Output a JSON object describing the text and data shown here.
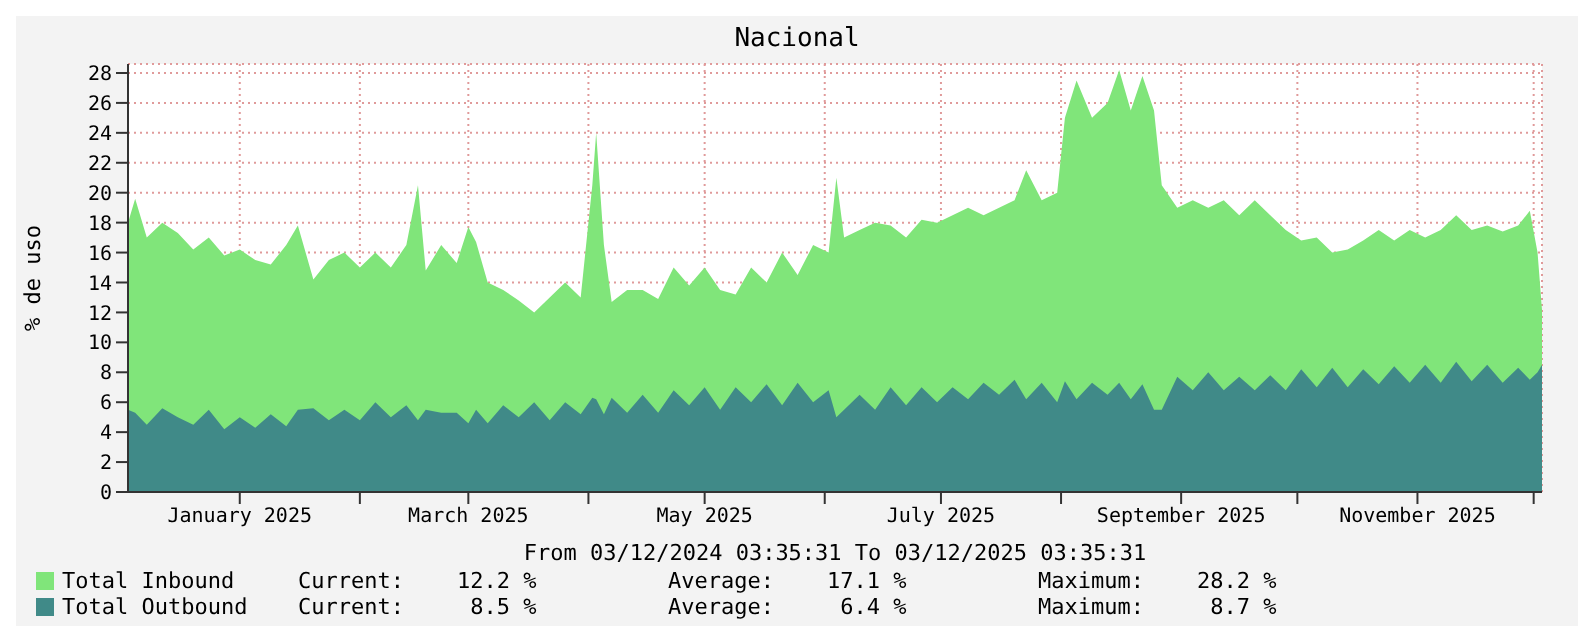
{
  "chart_data": {
    "type": "area",
    "title": "Nacional",
    "xlabel": "From 03/12/2024 03:35:31 To 03/12/2025 03:35:31",
    "ylabel": "% de uso",
    "x": [
      "2024-12-03T03:35",
      "2024-12-05",
      "2024-12-08",
      "2024-12-12",
      "2024-12-16",
      "2024-12-20",
      "2024-12-24",
      "2024-12-28",
      "2025-01-01",
      "2025-01-05",
      "2025-01-09",
      "2025-01-13",
      "2025-01-16",
      "2025-01-20",
      "2025-01-24",
      "2025-01-28",
      "2025-02-01",
      "2025-02-05",
      "2025-02-09",
      "2025-02-13",
      "2025-02-16",
      "2025-02-18",
      "2025-02-22",
      "2025-02-26",
      "2025-03-01",
      "2025-03-03",
      "2025-03-06",
      "2025-03-10",
      "2025-03-14",
      "2025-03-18",
      "2025-03-22",
      "2025-03-26",
      "2025-03-30",
      "2025-04-02",
      "2025-04-03",
      "2025-04-05",
      "2025-04-07",
      "2025-04-11",
      "2025-04-15",
      "2025-04-19",
      "2025-04-23",
      "2025-04-27",
      "2025-05-01",
      "2025-05-05",
      "2025-05-09",
      "2025-05-13",
      "2025-05-17",
      "2025-05-21",
      "2025-05-25",
      "2025-05-29",
      "2025-06-02",
      "2025-06-04",
      "2025-06-06",
      "2025-06-10",
      "2025-06-14",
      "2025-06-18",
      "2025-06-22",
      "2025-06-26",
      "2025-06-30",
      "2025-07-04",
      "2025-07-08",
      "2025-07-12",
      "2025-07-16",
      "2025-07-20",
      "2025-07-23",
      "2025-07-27",
      "2025-07-31",
      "2025-08-02",
      "2025-08-05",
      "2025-08-09",
      "2025-08-13",
      "2025-08-16",
      "2025-08-19",
      "2025-08-22",
      "2025-08-25",
      "2025-08-27",
      "2025-08-31",
      "2025-09-04",
      "2025-09-08",
      "2025-09-12",
      "2025-09-16",
      "2025-09-20",
      "2025-09-24",
      "2025-09-28",
      "2025-10-02",
      "2025-10-06",
      "2025-10-10",
      "2025-10-14",
      "2025-10-18",
      "2025-10-22",
      "2025-10-26",
      "2025-10-30",
      "2025-11-03",
      "2025-11-07",
      "2025-11-11",
      "2025-11-15",
      "2025-11-19",
      "2025-11-23",
      "2025-11-27",
      "2025-11-30",
      "2025-12-02",
      "2025-12-03T03:35"
    ],
    "series": [
      {
        "name": "Total Inbound",
        "color": "#80e57a",
        "values": [
          18,
          19.6,
          17,
          18,
          17.3,
          16.2,
          17,
          15.8,
          16.2,
          15.5,
          15.2,
          16.5,
          17.8,
          14.2,
          15.5,
          16,
          15,
          16,
          15,
          16.5,
          20.5,
          14.8,
          16.5,
          15.3,
          17.7,
          16.7,
          14,
          13.5,
          12.8,
          12,
          13,
          14,
          13,
          20.5,
          24,
          16.5,
          12.7,
          13.5,
          13.5,
          12.9,
          15,
          13.8,
          15,
          13.5,
          13.2,
          15,
          14,
          16,
          14.5,
          16.5,
          16,
          21,
          17,
          17.5,
          18,
          17.8,
          17,
          18.2,
          18,
          18.5,
          19,
          18.5,
          19,
          19.5,
          21.5,
          19.5,
          20,
          25,
          27.5,
          25,
          26,
          28.2,
          25.5,
          27.8,
          25.5,
          20.5,
          19,
          19.5,
          19,
          19.5,
          18.5,
          19.5,
          18.5,
          17.5,
          16.8,
          17,
          16,
          16.2,
          16.8,
          17.5,
          16.8,
          17.5,
          17,
          17.5,
          18.5,
          17.5,
          17.8,
          17.4,
          17.8,
          18.8,
          16,
          12.2
        ]
      },
      {
        "name": "Total Outbound",
        "color": "#408a88",
        "values": [
          5.5,
          5.3,
          4.5,
          5.6,
          5,
          4.5,
          5.5,
          4.2,
          5,
          4.3,
          5.2,
          4.4,
          5.5,
          5.6,
          4.8,
          5.5,
          4.8,
          6,
          5,
          5.8,
          4.8,
          5.5,
          5.3,
          5.3,
          4.6,
          5.5,
          4.6,
          5.8,
          5,
          6,
          4.8,
          6,
          5.2,
          6.3,
          6.2,
          5.2,
          6.3,
          5.3,
          6.5,
          5.3,
          6.8,
          5.8,
          7,
          5.5,
          7,
          6,
          7.2,
          5.8,
          7.3,
          6,
          6.8,
          5,
          5.5,
          6.5,
          5.5,
          7,
          5.8,
          7,
          6,
          7,
          6.2,
          7.3,
          6.5,
          7.5,
          6.2,
          7.3,
          6,
          7.4,
          6.2,
          7.3,
          6.5,
          7.3,
          6.2,
          7.2,
          5.5,
          5.5,
          7.7,
          6.8,
          8,
          6.8,
          7.7,
          6.8,
          7.8,
          6.8,
          8.2,
          7,
          8.3,
          7,
          8.2,
          7.2,
          8.4,
          7.3,
          8.5,
          7.3,
          8.7,
          7.4,
          8.5,
          7.3,
          8.3,
          7.5,
          8,
          8.5
        ]
      }
    ],
    "xlim": [
      "2024-12-03T03:35",
      "2025-12-03T03:35"
    ],
    "xticks": [
      {
        "value": "2025-01-01",
        "label": "January 2025"
      },
      {
        "value": "2025-02-01",
        "label": null
      },
      {
        "value": "2025-03-01",
        "label": "March 2025"
      },
      {
        "value": "2025-04-01",
        "label": null
      },
      {
        "value": "2025-05-01",
        "label": "May 2025"
      },
      {
        "value": "2025-06-01",
        "label": null
      },
      {
        "value": "2025-07-01",
        "label": "July 2025"
      },
      {
        "value": "2025-08-01",
        "label": null
      },
      {
        "value": "2025-09-01",
        "label": "September 2025"
      },
      {
        "value": "2025-10-01",
        "label": null
      },
      {
        "value": "2025-11-01",
        "label": "November 2025"
      },
      {
        "value": "2025-12-01",
        "label": null
      }
    ],
    "ylim": [
      0,
      28.6
    ],
    "yticks": [
      0,
      2,
      4,
      6,
      8,
      10,
      12,
      14,
      16,
      18,
      20,
      22,
      24,
      26,
      28
    ],
    "grid": true,
    "legend": "bottom left",
    "annotations": [
      "Current:    12.2 %",
      "Average:    17.1 %",
      "Maximum:    28.2 %",
      "Current:     8.5 %",
      "Average:     6.4 %",
      "Maximum:     8.7 %"
    ]
  }
}
